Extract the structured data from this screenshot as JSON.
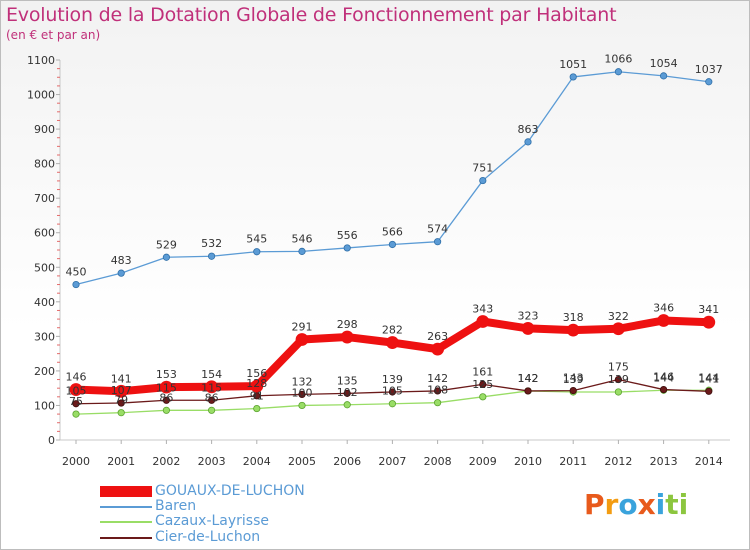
{
  "header": {
    "title": "Evolution de la Dotation Globale de Fonctionnement par Habitant",
    "subtitle": "(en € et par an)"
  },
  "logo": {
    "letters": [
      "P",
      "r",
      "o",
      "x",
      "i",
      "t",
      "i"
    ]
  },
  "colors": {
    "title": "#c0307a",
    "gouaux": "#ee1111",
    "baren": "#5b9bd5",
    "cazaux": "#99dd66",
    "cier": "#6b1a1a",
    "logo": [
      "#e85a1c",
      "#f39c12",
      "#3aa3dc",
      "#e85a1c",
      "#3aa3dc",
      "#8cc63f",
      "#8cc63f"
    ]
  },
  "chart_data": {
    "type": "line",
    "title": "Evolution de la Dotation Globale de Fonctionnement par Habitant",
    "subtitle": "(en € et par an)",
    "xlabel": "",
    "ylabel": "",
    "x": [
      "2000",
      "2001",
      "2002",
      "2003",
      "2004",
      "2005",
      "2006",
      "2007",
      "2008",
      "2009",
      "2010",
      "2011",
      "2012",
      "2013",
      "2014"
    ],
    "ylim": [
      0,
      1100
    ],
    "yticks": [
      0,
      100,
      200,
      300,
      400,
      500,
      600,
      700,
      800,
      900,
      1000,
      1100
    ],
    "grid": false,
    "legend": "bottom-left",
    "series": [
      {
        "name": "GOUAUX-DE-LUCHON",
        "values": [
          146,
          141,
          153,
          154,
          156,
          291,
          298,
          282,
          263,
          343,
          323,
          318,
          322,
          346,
          341
        ]
      },
      {
        "name": "Baren",
        "values": [
          450,
          483,
          529,
          532,
          545,
          546,
          556,
          566,
          574,
          751,
          863,
          1051,
          1066,
          1054,
          1037
        ]
      },
      {
        "name": "Cazaux-Layrisse",
        "values": [
          75,
          79,
          86,
          86,
          91,
          100,
          102,
          105,
          108,
          125,
          142,
          139,
          139,
          144,
          144
        ]
      },
      {
        "name": "Cier-de-Luchon",
        "values": [
          105,
          107,
          115,
          115,
          128,
          132,
          135,
          139,
          142,
          161,
          142,
          143,
          175,
          146,
          141
        ]
      }
    ]
  }
}
